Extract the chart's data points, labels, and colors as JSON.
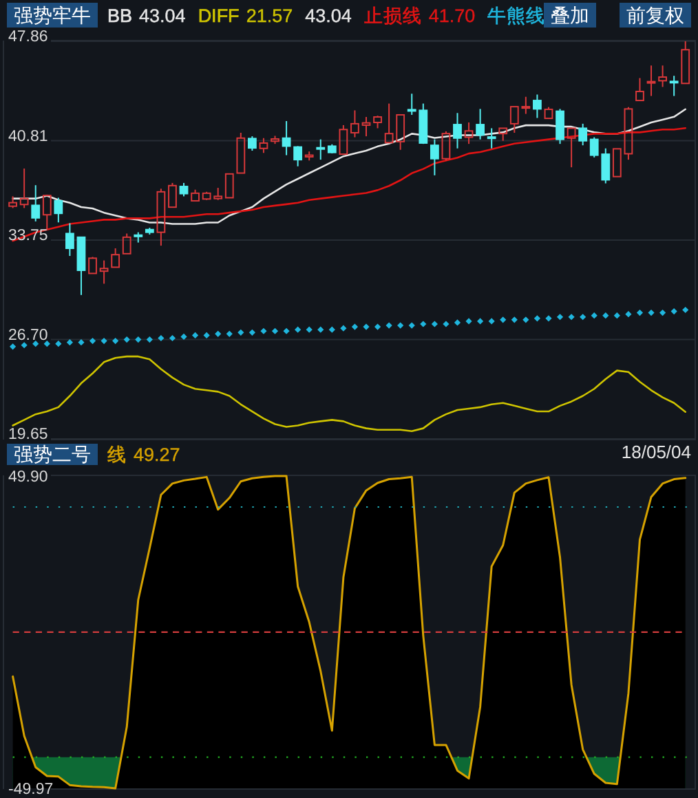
{
  "chart_data": [
    {
      "type": "candlestick",
      "title": "强势牢牛",
      "categories": [
        null,
        null,
        null,
        null,
        null,
        null,
        null,
        null,
        null,
        null,
        null,
        null,
        null,
        null,
        null,
        null,
        null,
        null,
        null,
        null,
        null,
        null,
        null,
        null,
        null,
        null,
        null,
        null,
        null,
        null,
        null,
        null,
        null,
        null,
        null,
        null,
        null,
        null,
        null,
        null,
        null,
        null,
        null,
        null,
        null,
        null,
        null,
        null,
        null,
        null,
        null,
        null,
        null,
        null,
        null,
        null,
        null,
        null,
        null,
        null
      ],
      "ohlc": [
        [
          36.16,
          36.86,
          36.03,
          36.41
        ],
        [
          36.28,
          38.83,
          36.03,
          36.7
        ],
        [
          36.22,
          37.65,
          35.08,
          35.33
        ],
        [
          35.55,
          36.98,
          34.44,
          36.92
        ],
        [
          36.54,
          36.76,
          35.01,
          35.65
        ],
        [
          34.22,
          34.95,
          32.63,
          33.17
        ],
        [
          33.96,
          33.96,
          29.86,
          31.61
        ],
        [
          31.39,
          32.56,
          31.39,
          32.47
        ],
        [
          31.55,
          32.31,
          30.66,
          31.74
        ],
        [
          31.83,
          33.17,
          31.83,
          32.72
        ],
        [
          32.79,
          34.22,
          32.79,
          33.96
        ],
        [
          34.09,
          34.31,
          33.58,
          34.03
        ],
        [
          34.5,
          34.63,
          34.15,
          34.31
        ],
        [
          34.31,
          37.4,
          33.36,
          37.18
        ],
        [
          36.09,
          37.81,
          36.09,
          37.62
        ],
        [
          37.56,
          37.81,
          36.86,
          37.05
        ],
        [
          36.54,
          37.33,
          36.54,
          37.08
        ],
        [
          36.67,
          37.18,
          36.6,
          37.08
        ],
        [
          36.7,
          37.46,
          36.6,
          36.86
        ],
        [
          36.76,
          38.45,
          36.76,
          38.45
        ],
        [
          38.51,
          41.37,
          38.51,
          40.99
        ],
        [
          40.96,
          41.12,
          40.1,
          40.29
        ],
        [
          40.26,
          40.99,
          39.94,
          40.64
        ],
        [
          40.77,
          41.15,
          40.58,
          40.93
        ],
        [
          40.99,
          42.2,
          39.78,
          40.42
        ],
        [
          40.36,
          40.42,
          38.99,
          39.46
        ],
        [
          39.66,
          40.04,
          39.4,
          39.78
        ],
        [
          40.29,
          40.9,
          39.46,
          40.23
        ],
        [
          40.42,
          40.55,
          39.91,
          39.97
        ],
        [
          39.85,
          41.91,
          39.85,
          41.6
        ],
        [
          41.37,
          42.96,
          41.05,
          42.01
        ],
        [
          41.91,
          42.49,
          41.12,
          42.07
        ],
        [
          42.1,
          42.58,
          41.69,
          42.49
        ],
        [
          40.67,
          43.44,
          40.67,
          41.31
        ],
        [
          40.74,
          42.64,
          40.16,
          42.64
        ],
        [
          42.99,
          44.14,
          42.64,
          42.93
        ],
        [
          42.96,
          43.44,
          40.58,
          40.64
        ],
        [
          40.48,
          40.9,
          38.35,
          39.53
        ],
        [
          39.53,
          41.47,
          39.4,
          41.31
        ],
        [
          41.95,
          42.77,
          40.26,
          40.99
        ],
        [
          41.05,
          42.1,
          40.58,
          41.5
        ],
        [
          41.95,
          43.06,
          40.9,
          41.21
        ],
        [
          41.05,
          41.69,
          40.26,
          40.99
        ],
        [
          41.31,
          41.69,
          40.8,
          41.69
        ],
        [
          42.01,
          43.22,
          41.37,
          43.22
        ],
        [
          43.12,
          43.92,
          42.71,
          43.22
        ],
        [
          43.66,
          44.08,
          42.42,
          43.06
        ],
        [
          42.39,
          43.19,
          42.39,
          43.03
        ],
        [
          42.9,
          43.06,
          40.58,
          40.9
        ],
        [
          40.99,
          41.69,
          38.92,
          41.69
        ],
        [
          41.69,
          42.01,
          40.48,
          40.8
        ],
        [
          40.9,
          41.05,
          39.62,
          39.78
        ],
        [
          39.85,
          40.26,
          37.78,
          38.03
        ],
        [
          38.26,
          40.23,
          38.26,
          40.23
        ],
        [
          39.88,
          43.19,
          39.46,
          43.06
        ],
        [
          43.66,
          45.25,
          43.66,
          44.3
        ],
        [
          44.9,
          46.14,
          43.98,
          45.0
        ],
        [
          45.06,
          46.14,
          44.62,
          45.32
        ],
        [
          45.0,
          45.41,
          43.98,
          44.93
        ],
        [
          44.87,
          47.86,
          44.87,
          47.26
        ]
      ],
      "colors": [
        "#d8383a",
        "#d8383a",
        "#54eef0",
        "#d8383a",
        "#54eef0",
        "#54eef0",
        "#54eef0",
        "#d8383a",
        "#d8383a",
        "#d8383a",
        "#d8383a",
        "#54eef0",
        "#54eef0",
        "#d8383a",
        "#d8383a",
        "#54eef0",
        "#d8383a",
        "#d8383a",
        "#d8383a",
        "#d8383a",
        "#d8383a",
        "#54eef0",
        "#d8383a",
        "#d8383a",
        "#54eef0",
        "#54eef0",
        "#d8383a",
        "#54eef0",
        "#54eef0",
        "#d8383a",
        "#d8383a",
        "#d8383a",
        "#d8383a",
        "#d8383a",
        "#d8383a",
        "#54eef0",
        "#54eef0",
        "#54eef0",
        "#d8383a",
        "#54eef0",
        "#d8383a",
        "#54eef0",
        "#54eef0",
        "#d8383a",
        "#d8383a",
        "#d8383a",
        "#54eef0",
        "#d8383a",
        "#54eef0",
        "#d8383a",
        "#54eef0",
        "#54eef0",
        "#54eef0",
        "#d8383a",
        "#d8383a",
        "#d8383a",
        "#d8383a",
        "#d8383a",
        "#54eef0",
        "#d8383a"
      ],
      "series": [
        {
          "name": "BB",
          "type": "line",
          "color": "#e6e6e6",
          "values": [
            36.7,
            36.7,
            36.7,
            36.9,
            36.6,
            36.4,
            36.1,
            36.0,
            35.7,
            35.5,
            35.3,
            35.2,
            35.0,
            35.0,
            34.9,
            34.9,
            34.9,
            35.0,
            35.0,
            35.5,
            35.8,
            36.1,
            36.7,
            37.2,
            37.7,
            38.1,
            38.5,
            38.9,
            39.3,
            39.7,
            39.9,
            40.1,
            40.4,
            40.6,
            40.9,
            41.3,
            41.2,
            41.0,
            41.1,
            41.2,
            41.2,
            41.2,
            41.3,
            41.4,
            41.7,
            41.9,
            41.9,
            41.9,
            41.8,
            41.8,
            41.6,
            41.4,
            41.3,
            41.3,
            41.5,
            41.8,
            42.1,
            42.3,
            42.5,
            43.04
          ]
        },
        {
          "name": "DIFF",
          "type": "line",
          "color": "#cfc400",
          "values": [
            20.6,
            21.0,
            21.4,
            21.6,
            21.9,
            22.7,
            23.6,
            24.3,
            25.1,
            25.4,
            25.5,
            25.5,
            25.3,
            24.6,
            24.0,
            23.5,
            23.2,
            23.1,
            23.0,
            22.7,
            22.1,
            21.6,
            21.1,
            20.7,
            20.5,
            20.6,
            20.8,
            20.9,
            21.0,
            20.9,
            20.6,
            20.4,
            20.3,
            20.3,
            20.3,
            20.2,
            20.4,
            21.0,
            21.4,
            21.7,
            21.8,
            21.9,
            22.1,
            22.2,
            22.0,
            21.8,
            21.6,
            21.6,
            22.0,
            22.3,
            22.7,
            23.2,
            23.9,
            24.5,
            24.4,
            23.7,
            23.1,
            22.6,
            22.2,
            21.57
          ]
        },
        {
          "name": "止损线",
          "type": "line",
          "color": "#e31414",
          "values": [
            33.7,
            34.0,
            34.3,
            34.5,
            34.7,
            34.9,
            35.0,
            35.1,
            35.2,
            35.2,
            35.3,
            35.3,
            35.3,
            35.4,
            35.4,
            35.4,
            35.5,
            35.6,
            35.6,
            35.7,
            35.8,
            35.9,
            36.1,
            36.2,
            36.3,
            36.4,
            36.6,
            36.7,
            36.8,
            36.9,
            37.0,
            37.1,
            37.3,
            37.6,
            38.0,
            38.5,
            38.8,
            39.2,
            39.4,
            39.6,
            39.9,
            40.0,
            40.2,
            40.4,
            40.6,
            40.7,
            40.8,
            40.9,
            41.0,
            41.1,
            41.2,
            41.3,
            41.3,
            41.3,
            41.4,
            41.4,
            41.5,
            41.6,
            41.6,
            41.7
          ]
        },
        {
          "name": "牛熊线",
          "type": "scatter",
          "marker": "diamond",
          "color": "#1fb6de",
          "values": [
            26.2,
            26.3,
            26.4,
            26.4,
            26.4,
            26.5,
            26.5,
            26.6,
            26.6,
            26.6,
            26.7,
            26.7,
            26.7,
            26.8,
            26.8,
            26.9,
            27.0,
            27.0,
            27.1,
            27.1,
            27.2,
            27.2,
            27.3,
            27.3,
            27.3,
            27.4,
            27.4,
            27.4,
            27.4,
            27.5,
            27.6,
            27.6,
            27.6,
            27.7,
            27.7,
            27.7,
            27.8,
            27.8,
            27.8,
            27.9,
            28.0,
            28.0,
            28.0,
            28.1,
            28.1,
            28.1,
            28.2,
            28.2,
            28.3,
            28.3,
            28.3,
            28.4,
            28.4,
            28.4,
            28.5,
            28.6,
            28.6,
            28.6,
            28.7,
            28.8
          ]
        }
      ],
      "ylim": [
        19.65,
        47.86
      ],
      "yticks": [
        47.86,
        40.81,
        33.75,
        {
          "value": 26.7,
          "label": "26.70"
        },
        19.65
      ],
      "grid": "y",
      "legend": "top",
      "annotations": [
        "43.04",
        "21.57",
        "43.04",
        "41.70",
        "叠加",
        "前复权"
      ]
    },
    {
      "type": "line",
      "title": "强势二号",
      "categories": [
        null,
        null,
        null,
        null,
        null,
        null,
        null,
        null,
        null,
        null,
        null,
        null,
        null,
        null,
        null,
        null,
        null,
        null,
        null,
        null,
        null,
        null,
        null,
        null,
        null,
        null,
        null,
        null,
        null,
        null,
        null,
        null,
        null,
        null,
        null,
        null,
        null,
        null,
        null,
        null,
        null,
        null,
        null,
        null,
        null,
        null,
        null,
        null,
        null,
        null,
        null,
        null,
        null,
        null,
        null,
        null,
        null,
        null,
        null,
        null
      ],
      "series": [
        {
          "name": "线",
          "color": "#d6a200",
          "values": [
            -14.2,
            -33.2,
            -43.2,
            -46.0,
            -46.2,
            -48.9,
            -49.3,
            -49.5,
            -49.6,
            -49.97,
            -30.3,
            10.3,
            26.8,
            43.9,
            47.5,
            48.5,
            49.0,
            49.6,
            39.2,
            42.9,
            48.2,
            49.2,
            49.6,
            49.9,
            49.9,
            14.6,
            3.2,
            -12.5,
            -31.5,
            17.5,
            39.6,
            45.3,
            47.7,
            48.9,
            49.2,
            49.6,
            -1.1,
            -36.1,
            -36.1,
            -44.3,
            -46.8,
            -23.9,
            21.0,
            27.8,
            44.6,
            47.5,
            48.6,
            49.5,
            23.9,
            -16.8,
            -37.5,
            -45.3,
            -48.2,
            -48.6,
            -19.6,
            29.6,
            43.2,
            47.5,
            48.9,
            49.27
          ],
          "lower": [
            -49.97,
            -49.97,
            -49.97,
            -49.97,
            -49.97,
            -49.97,
            -49.97,
            -49.97,
            -49.97,
            -49.97,
            -49.97,
            -49.97,
            -49.97,
            -49.97,
            -49.97,
            -49.97,
            -49.97,
            -49.97,
            -49.97,
            -49.97,
            -49.97,
            -49.97,
            -49.97,
            -49.97,
            -49.97,
            -49.97,
            -49.97,
            -49.97,
            -49.97,
            -49.97,
            -49.97,
            -49.97,
            -49.97,
            -49.97,
            -49.97,
            -49.97,
            -49.97,
            -49.97,
            -49.97,
            -49.97,
            -49.97,
            -49.97,
            -49.97,
            -49.97,
            -49.97,
            -49.97,
            -49.97,
            -49.97,
            -49.97,
            -49.97,
            -49.97,
            -49.97,
            -49.97,
            -49.97,
            -49.97,
            -49.97,
            -49.97,
            -49.97,
            -49.97,
            -49.97
          ],
          "upper": [
            -14.2,
            -33.2,
            -43.2,
            -46.0,
            -46.2,
            -48.9,
            -49.3,
            -49.5,
            -49.6,
            -49.97,
            -30.3,
            10.3,
            26.8,
            43.9,
            47.5,
            48.5,
            49.0,
            49.6,
            39.2,
            42.9,
            48.2,
            49.2,
            49.6,
            49.9,
            49.9,
            14.6,
            3.2,
            -12.5,
            -31.5,
            17.5,
            39.6,
            45.3,
            47.7,
            48.9,
            49.2,
            49.6,
            -1.1,
            -36.1,
            -36.1,
            -44.3,
            -46.8,
            -23.9,
            21.0,
            27.8,
            44.6,
            47.5,
            48.6,
            49.5,
            23.9,
            -16.8,
            -37.5,
            -45.3,
            -48.2,
            -48.6,
            -19.6,
            29.6,
            43.2,
            47.5,
            48.9,
            49.27
          ]
        }
      ],
      "ylim": [
        -49.97,
        49.9
      ],
      "yticks": [
        {
          "value": 49.9,
          "label": "49.90"
        },
        -49.97
      ],
      "ref_lines": [
        {
          "axis": "y",
          "value": 40,
          "color": "#1fa9b5",
          "line_style": "dotted"
        },
        {
          "axis": "y",
          "value": 0,
          "color": "#d23c3c",
          "line_style": "dashed"
        },
        {
          "axis": "y",
          "value": -40,
          "color": "#22b022",
          "line_style": "dotted"
        }
      ],
      "bands": [
        {
          "axis": "y",
          "from": -49.97,
          "to": -40,
          "color": "#0d6a35"
        }
      ],
      "legend": "top",
      "annotations": [
        "49.27",
        "18/05/04"
      ]
    }
  ]
}
